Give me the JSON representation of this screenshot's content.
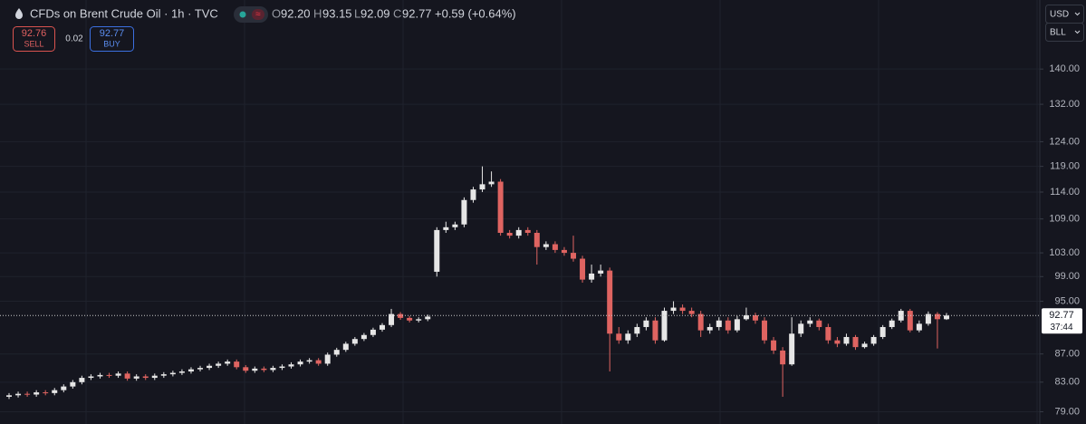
{
  "header": {
    "title": "CFDs on Brent Crude Oil · 1h · TVC",
    "open_key": "O",
    "open": "92.20",
    "high_key": "H",
    "high": "93.15",
    "low_key": "L",
    "low": "92.09",
    "close_key": "C",
    "close": "92.77",
    "change": "+0.59 (+0.64%)"
  },
  "trade": {
    "sell_price": "92.76",
    "sell_label": "SELL",
    "spread": "0.02",
    "buy_price": "92.77",
    "buy_label": "BUY"
  },
  "settings": {
    "currency": "USD",
    "unit": "BLL"
  },
  "chart_data": {
    "type": "candlestick",
    "log_scale": true,
    "grid": true,
    "up_color": "#e6e6e6",
    "down_color": "#df6461",
    "ylim": [
      77.4,
      157.1
    ],
    "yticks": [
      {
        "value": 79,
        "label": "79.00"
      },
      {
        "value": 83,
        "label": "83.00"
      },
      {
        "value": 87,
        "label": "87.00"
      },
      {
        "value": 95,
        "label": "95.00"
      },
      {
        "value": 99,
        "label": "99.00"
      },
      {
        "value": 103,
        "label": "103.00"
      },
      {
        "value": 109,
        "label": "109.00"
      },
      {
        "value": 114,
        "label": "114.00"
      },
      {
        "value": 119,
        "label": "119.00"
      },
      {
        "value": 124,
        "label": "124.00"
      },
      {
        "value": 132,
        "label": "132.00"
      },
      {
        "value": 140,
        "label": "140.00"
      }
    ],
    "countdown": "37:44",
    "open": [
      81.0,
      81.2,
      81.4,
      81.3,
      81.6,
      81.5,
      81.9,
      82.4,
      83.0,
      83.6,
      83.8,
      84.0,
      83.9,
      84.2,
      83.5,
      83.8,
      83.6,
      83.9,
      84.1,
      84.3,
      84.5,
      84.8,
      85.0,
      85.3,
      85.6,
      85.9,
      85.1,
      84.6,
      84.9,
      84.7,
      85.0,
      85.2,
      85.5,
      85.9,
      86.1,
      85.6,
      86.9,
      87.6,
      88.5,
      89.2,
      89.8,
      90.6,
      91.3,
      93.0,
      92.4,
      92.0,
      92.2,
      99.8,
      107.0,
      107.5,
      108.0,
      112.5,
      114.5,
      115.5,
      116.0,
      106.5,
      106.0,
      107.0,
      106.5,
      104.0,
      104.5,
      103.5,
      103.0,
      102.0,
      98.5,
      99.5,
      100.0,
      90.0,
      89.0,
      90.0,
      91.0,
      92.0,
      89.0,
      93.5,
      94.0,
      93.5,
      93.0,
      90.5,
      91.0,
      92.0,
      90.5,
      92.2,
      92.8,
      92.0,
      89.0,
      87.5,
      85.5,
      90.0,
      91.5,
      92.0,
      91.0,
      89.0,
      88.5,
      89.5,
      88.0,
      88.5,
      89.5,
      91.0,
      92.0,
      93.5,
      90.5,
      91.5,
      93.0,
      92.2
    ],
    "high": [
      81.5,
      81.7,
      81.7,
      81.9,
      81.9,
      82.2,
      82.7,
      83.3,
      83.9,
      84.1,
      84.3,
      84.3,
      84.5,
      84.5,
      84.1,
      84.1,
      84.2,
      84.4,
      84.6,
      84.8,
      85.1,
      85.3,
      85.6,
      85.9,
      86.2,
      86.2,
      85.4,
      85.2,
      85.2,
      85.3,
      85.5,
      85.8,
      86.2,
      86.4,
      86.4,
      87.2,
      87.9,
      88.8,
      89.5,
      90.1,
      90.9,
      91.6,
      93.8,
      93.3,
      92.7,
      92.5,
      92.9,
      107.5,
      108.5,
      108.5,
      113.0,
      115.0,
      119.0,
      118.0,
      116.5,
      107.0,
      107.5,
      107.5,
      107.0,
      105.0,
      105.0,
      104.0,
      106.0,
      102.5,
      101.0,
      101.0,
      100.5,
      91.0,
      90.5,
      91.5,
      92.5,
      92.5,
      94.0,
      95.0,
      94.5,
      94.0,
      93.5,
      91.5,
      92.5,
      92.5,
      92.7,
      94.0,
      93.2,
      92.5,
      89.5,
      88.0,
      92.5,
      92.0,
      92.5,
      92.3,
      91.5,
      89.5,
      90.0,
      89.8,
      88.8,
      89.8,
      91.3,
      92.3,
      93.8,
      93.8,
      92.0,
      93.4,
      93.3,
      93.15
    ],
    "low": [
      80.7,
      80.9,
      81.0,
      81.0,
      81.2,
      81.2,
      81.6,
      82.1,
      82.7,
      83.3,
      83.5,
      83.6,
      83.6,
      83.2,
      83.2,
      83.3,
      83.3,
      83.6,
      83.8,
      84.0,
      84.2,
      84.5,
      84.7,
      85.0,
      85.3,
      84.8,
      84.3,
      84.3,
      84.4,
      84.4,
      84.7,
      84.9,
      85.2,
      85.6,
      85.3,
      85.3,
      86.6,
      87.3,
      88.2,
      88.9,
      89.5,
      90.3,
      91.0,
      92.1,
      91.7,
      91.7,
      91.9,
      99.0,
      106.5,
      107.0,
      107.5,
      112.0,
      114.0,
      115.0,
      106.0,
      105.5,
      105.5,
      106.0,
      101.0,
      103.5,
      103.0,
      102.5,
      101.5,
      98.0,
      98.0,
      99.0,
      84.5,
      88.5,
      88.5,
      89.5,
      90.5,
      88.5,
      88.8,
      93.0,
      93.0,
      92.5,
      89.5,
      90.0,
      90.5,
      90.0,
      90.2,
      92.0,
      91.5,
      88.5,
      87.0,
      81.0,
      85.3,
      89.5,
      91.0,
      90.5,
      88.5,
      88.0,
      88.2,
      87.6,
      87.8,
      88.2,
      89.2,
      90.7,
      91.7,
      90.2,
      90.2,
      91.2,
      87.8,
      92.09
    ],
    "close": [
      81.2,
      81.4,
      81.3,
      81.6,
      81.5,
      81.9,
      82.4,
      83.0,
      83.6,
      83.8,
      84.0,
      83.9,
      84.2,
      83.5,
      83.8,
      83.6,
      83.9,
      84.1,
      84.3,
      84.5,
      84.8,
      85.0,
      85.3,
      85.6,
      85.9,
      85.1,
      84.6,
      84.9,
      84.7,
      85.0,
      85.2,
      85.5,
      85.9,
      86.1,
      85.6,
      86.9,
      87.6,
      88.5,
      89.2,
      89.8,
      90.6,
      91.3,
      93.0,
      92.4,
      92.0,
      92.2,
      92.6,
      107.0,
      107.5,
      108.0,
      112.5,
      114.5,
      115.5,
      116.0,
      106.5,
      106.0,
      107.0,
      106.5,
      104.0,
      104.5,
      103.5,
      103.0,
      102.0,
      98.5,
      99.5,
      100.0,
      90.0,
      89.0,
      90.0,
      91.0,
      92.0,
      89.0,
      93.5,
      94.0,
      93.5,
      93.0,
      90.5,
      91.0,
      92.0,
      90.5,
      92.2,
      92.8,
      92.0,
      89.0,
      87.5,
      85.5,
      90.0,
      91.5,
      92.0,
      91.0,
      89.0,
      88.5,
      89.5,
      88.0,
      88.5,
      89.5,
      91.0,
      92.0,
      93.5,
      90.5,
      91.5,
      93.0,
      92.2,
      92.77
    ]
  }
}
